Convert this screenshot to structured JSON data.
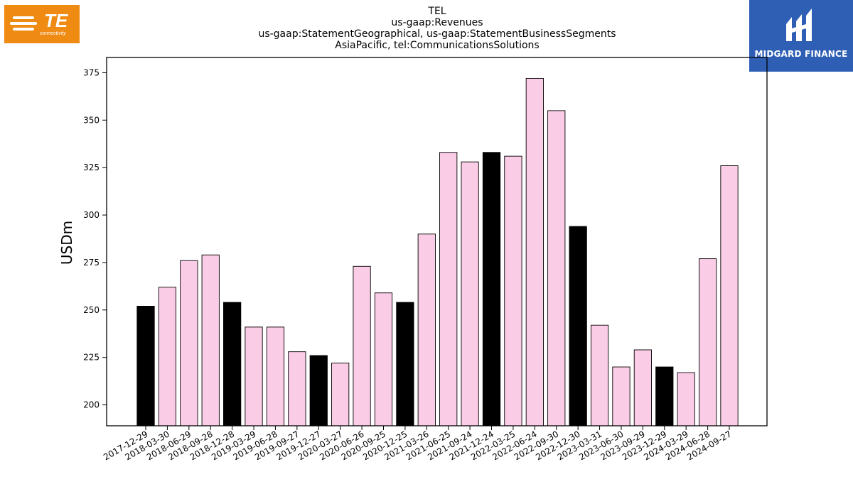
{
  "logos": {
    "te_mark": "TE",
    "te_sub": "connectivity",
    "midgard": "MIDGARD FINANCE"
  },
  "chart_data": {
    "type": "bar",
    "title_lines": [
      "TEL",
      "us-gaap:Revenues",
      "us-gaap:StatementGeographical, us-gaap:StatementBusinessSegments",
      "AsiaPacific, tel:CommunicationsSolutions"
    ],
    "ylabel": "USDm",
    "xlabel": "",
    "ylim": [
      189,
      383
    ],
    "yticks": [
      200,
      225,
      250,
      275,
      300,
      325,
      350,
      375
    ],
    "grid": false,
    "categories": [
      "2017-12-29",
      "2018-03-30",
      "2018-06-29",
      "2018-09-28",
      "2018-12-28",
      "2019-03-29",
      "2019-06-28",
      "2019-09-27",
      "2019-12-27",
      "2020-03-27",
      "2020-06-26",
      "2020-09-25",
      "2020-12-25",
      "2021-03-26",
      "2021-06-25",
      "2021-09-24",
      "2021-12-24",
      "2022-03-25",
      "2022-06-24",
      "2022-09-30",
      "2022-12-30",
      "2023-03-31",
      "2023-06-30",
      "2023-09-29",
      "2023-12-29",
      "2024-03-29",
      "2024-06-28",
      "2024-09-27"
    ],
    "values": [
      252,
      262,
      276,
      279,
      254,
      241,
      241,
      228,
      226,
      222,
      273,
      259,
      254,
      290,
      333,
      328,
      333,
      331,
      372,
      355,
      294,
      242,
      220,
      229,
      220,
      217,
      277,
      326
    ],
    "colors": {
      "q1": "#000000",
      "other": "#fbcce6",
      "edge": "#000000"
    }
  }
}
